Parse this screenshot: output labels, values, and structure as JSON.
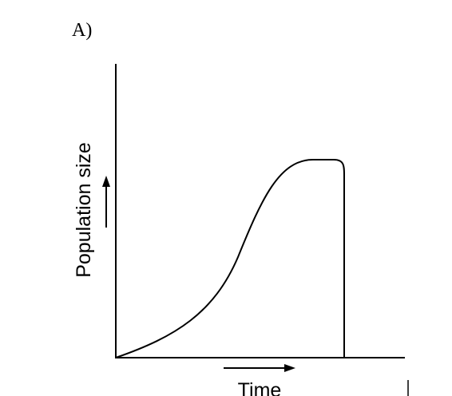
{
  "panel_label": "A)",
  "y_axis_label": "Population size",
  "x_axis_label": "Time"
}
